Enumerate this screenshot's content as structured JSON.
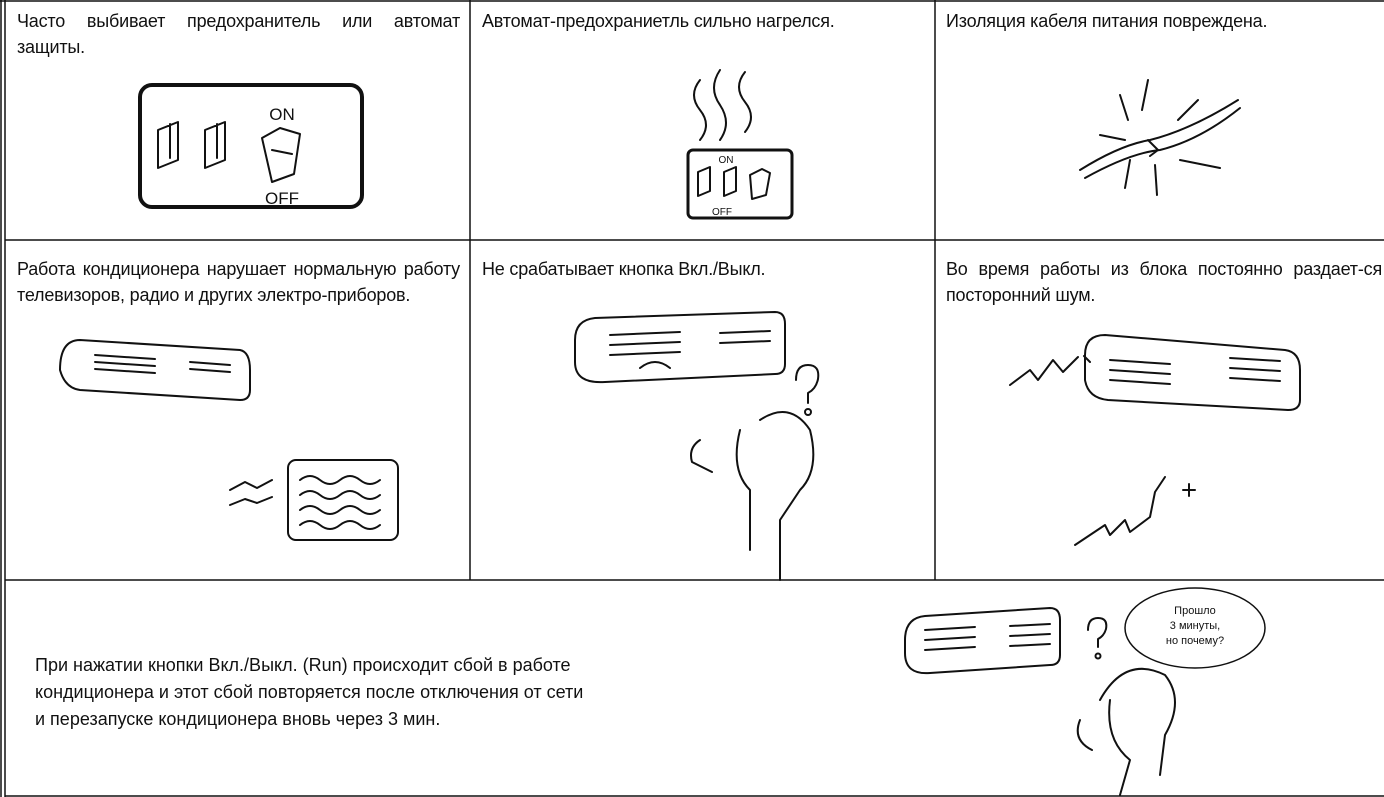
{
  "cells": [
    {
      "text": "Часто выбивает предохранитель или автомат защиты.",
      "labels": [
        "ON",
        "OFF"
      ]
    },
    {
      "text": "Автомат-предохраниетль сильно нагрелся.",
      "labels": [
        "ON",
        "OFF"
      ]
    },
    {
      "text": "Изоляция кабеля питания повреждена."
    },
    {
      "text": "Работа кондиционера нарушает нормальную работу телевизоров, радио и других электро-приборов."
    },
    {
      "text": "Не срабатывает кнопка Вкл./Выкл."
    },
    {
      "text": "Во время работы из блока постоянно раздает-ся посторонний шум."
    }
  ],
  "bottom": {
    "lines": [
      "При нажатии кнопки Вкл./Выкл. (Run) происходит сбой в работе",
      "кондиционера и этот сбой повторяется после отключения от сети",
      "и перезапуске кондиционера вновь через 3 мин."
    ],
    "bubble": [
      "Прошло",
      "3 минуты,",
      "но почему?"
    ]
  }
}
